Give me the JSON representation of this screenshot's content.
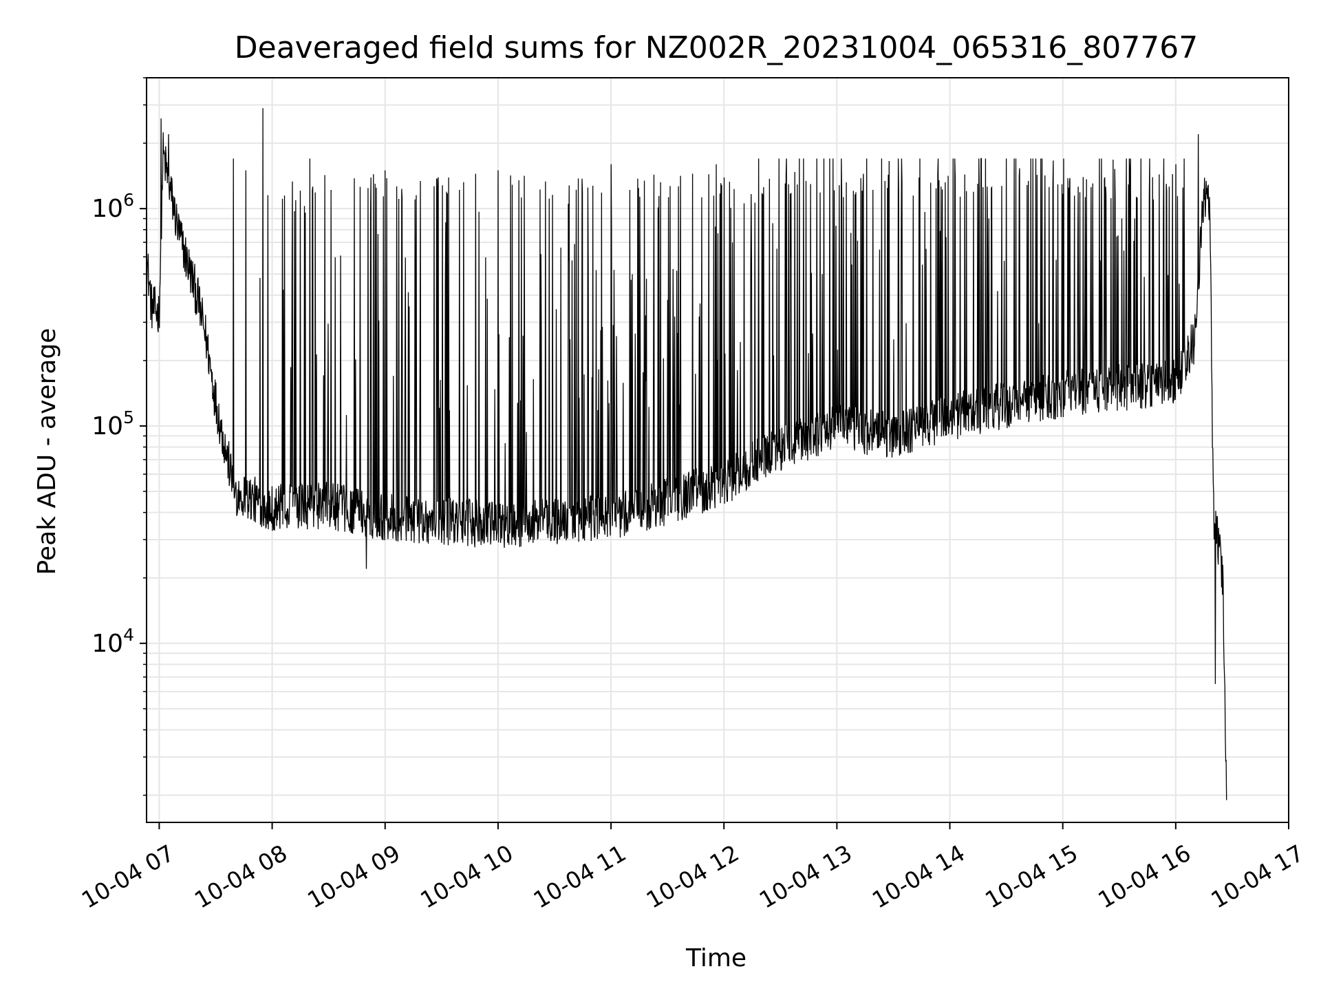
{
  "chart_data": {
    "type": "line",
    "title": "Deaveraged field sums for NZ002R_20231004_065316_807767",
    "xlabel": "Time",
    "ylabel": "Peak ADU - average",
    "y_scale": "log",
    "grid": true,
    "legend": "none",
    "colors": {
      "line": "#000000",
      "grid": "#e6e6e6",
      "axes": "#000000"
    },
    "xlim": [
      "2023-10-04T06:53:16",
      "2023-10-04T17:00:00"
    ],
    "ylim": [
      1500,
      4000000
    ],
    "x_ticks": [
      {
        "t": "2023-10-04T07:00:00",
        "label": "10-04 07"
      },
      {
        "t": "2023-10-04T08:00:00",
        "label": "10-04 08"
      },
      {
        "t": "2023-10-04T09:00:00",
        "label": "10-04 09"
      },
      {
        "t": "2023-10-04T10:00:00",
        "label": "10-04 10"
      },
      {
        "t": "2023-10-04T11:00:00",
        "label": "10-04 11"
      },
      {
        "t": "2023-10-04T12:00:00",
        "label": "10-04 12"
      },
      {
        "t": "2023-10-04T13:00:00",
        "label": "10-04 13"
      },
      {
        "t": "2023-10-04T14:00:00",
        "label": "10-04 14"
      },
      {
        "t": "2023-10-04T15:00:00",
        "label": "10-04 15"
      },
      {
        "t": "2023-10-04T16:00:00",
        "label": "10-04 16"
      },
      {
        "t": "2023-10-04T17:00:00",
        "label": "10-04 17"
      }
    ],
    "y_ticks": [
      {
        "v": 10000,
        "base": "10",
        "exp": "4"
      },
      {
        "v": 100000,
        "base": "10",
        "exp": "5"
      },
      {
        "v": 1000000,
        "base": "10",
        "exp": "6"
      }
    ],
    "series": [
      {
        "style": "thin line",
        "baseline": [
          {
            "t": "2023-10-04T06:53:16",
            "v": 600000
          },
          {
            "t": "2023-10-04T06:56:00",
            "v": 350000
          },
          {
            "t": "2023-10-04T07:00:00",
            "v": 330000
          },
          {
            "t": "2023-10-04T07:02:00",
            "v": 1800000
          },
          {
            "t": "2023-10-04T07:10:00",
            "v": 800000
          },
          {
            "t": "2023-10-04T07:20:00",
            "v": 400000
          },
          {
            "t": "2023-10-04T07:25:00",
            "v": 250000
          },
          {
            "t": "2023-10-04T07:30:00",
            "v": 130000
          },
          {
            "t": "2023-10-04T07:35:00",
            "v": 80000
          },
          {
            "t": "2023-10-04T07:40:00",
            "v": 50000
          },
          {
            "t": "2023-10-04T08:00:00",
            "v": 42000
          },
          {
            "t": "2023-10-04T08:30:00",
            "v": 43000
          },
          {
            "t": "2023-10-04T09:00:00",
            "v": 38000
          },
          {
            "t": "2023-10-04T10:00:00",
            "v": 35000
          },
          {
            "t": "2023-10-04T11:00:00",
            "v": 38000
          },
          {
            "t": "2023-10-04T11:30:00",
            "v": 45000
          },
          {
            "t": "2023-10-04T12:00:00",
            "v": 55000
          },
          {
            "t": "2023-10-04T12:30:00",
            "v": 80000
          },
          {
            "t": "2023-10-04T13:00:00",
            "v": 100000
          },
          {
            "t": "2023-10-04T13:30:00",
            "v": 90000
          },
          {
            "t": "2023-10-04T14:00:00",
            "v": 110000
          },
          {
            "t": "2023-10-04T15:00:00",
            "v": 140000
          },
          {
            "t": "2023-10-04T16:00:00",
            "v": 160000
          },
          {
            "t": "2023-10-04T16:10:00",
            "v": 250000
          },
          {
            "t": "2023-10-04T16:15:00",
            "v": 1200000
          },
          {
            "t": "2023-10-04T16:18:00",
            "v": 1000000
          },
          {
            "t": "2023-10-04T16:19:00",
            "v": 250000
          },
          {
            "t": "2023-10-04T16:20:00",
            "v": 40000
          },
          {
            "t": "2023-10-04T16:25:00",
            "v": 20000
          },
          {
            "t": "2023-10-04T16:27:00",
            "v": 2000
          }
        ],
        "spikes": [
          {
            "t": "2023-10-04T07:01:00",
            "v": 2600000
          },
          {
            "t": "2023-10-04T07:05:00",
            "v": 2200000
          },
          {
            "t": "2023-10-04T07:46:00",
            "v": 1500000
          },
          {
            "t": "2023-10-04T07:55:00",
            "v": 2900000
          },
          {
            "t": "2023-10-04T08:20:00",
            "v": 1700000
          },
          {
            "t": "2023-10-04T09:00:00",
            "v": 1500000
          },
          {
            "t": "2023-10-04T10:00:00",
            "v": 1500000
          },
          {
            "t": "2023-10-04T11:00:00",
            "v": 1600000
          },
          {
            "t": "2023-10-04T11:56:00",
            "v": 1600000
          },
          {
            "t": "2023-10-04T12:40:00",
            "v": 1700000
          },
          {
            "t": "2023-10-04T14:30:00",
            "v": 1700000
          },
          {
            "t": "2023-10-04T16:00:00",
            "v": 1600000
          },
          {
            "t": "2023-10-04T16:12:00",
            "v": 2200000
          }
        ],
        "dips": [
          {
            "t": "2023-10-04T08:50:00",
            "v": 22000
          },
          {
            "t": "2023-10-04T16:21:00",
            "v": 6500
          },
          {
            "t": "2023-10-04T16:27:00",
            "v": 1900
          }
        ]
      }
    ]
  }
}
